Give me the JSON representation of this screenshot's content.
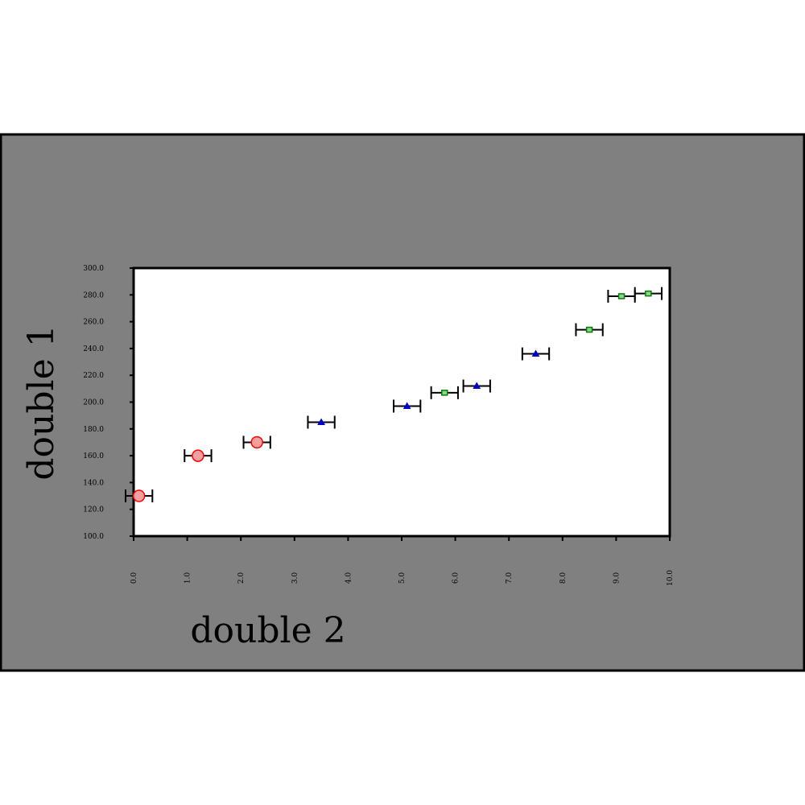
{
  "chart_data": {
    "type": "scatter",
    "xlabel": "double 2",
    "ylabel": "double 1",
    "xlim": [
      0,
      10
    ],
    "ylim": [
      100,
      300
    ],
    "x_ticks": [
      "0.0",
      "1.0",
      "2.0",
      "3.0",
      "4.0",
      "5.0",
      "6.0",
      "7.0",
      "8.0",
      "9.0",
      "10.0"
    ],
    "y_ticks": [
      "100.0",
      "120.0",
      "140.0",
      "160.0",
      "180.0",
      "200.0",
      "220.0",
      "240.0",
      "260.0",
      "280.0",
      "300.0"
    ],
    "x_error": 0.25,
    "grid": false,
    "series": [
      {
        "marker": "circle",
        "color": "#ff0000",
        "fill": "#f4a0a0",
        "points": [
          [
            0.1,
            130
          ],
          [
            1.2,
            160
          ],
          [
            2.3,
            170
          ]
        ]
      },
      {
        "marker": "triangle",
        "color": "#0000cc",
        "fill": "#0000cc",
        "points": [
          [
            3.5,
            185
          ],
          [
            5.1,
            197
          ],
          [
            6.4,
            212
          ],
          [
            7.5,
            236
          ]
        ]
      },
      {
        "marker": "square",
        "color": "#008000",
        "fill": "#90d090",
        "points": [
          [
            5.8,
            207
          ],
          [
            8.5,
            254
          ],
          [
            9.1,
            279
          ],
          [
            9.6,
            281
          ]
        ]
      }
    ],
    "colors": {
      "outer_background": "#808080",
      "plot_background": "#ffffff"
    }
  }
}
